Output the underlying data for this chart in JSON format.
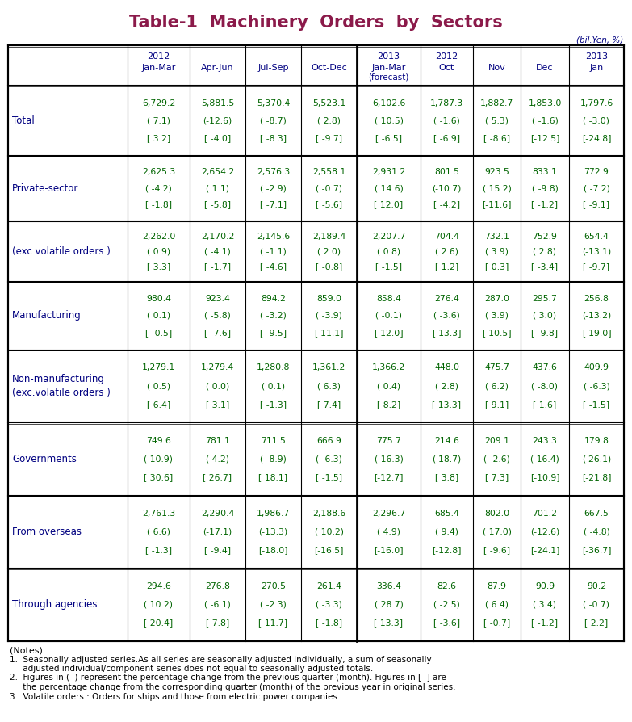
{
  "title": "Table-1  Machinery  Orders  by  Sectors",
  "title_color": "#8B1A4A",
  "unit_text": "(bil.Yen, %)",
  "col_header_color": "#000080",
  "data_color": "#006400",
  "label_color": "#000080",
  "header_lines": [
    [
      "",
      "2012",
      "",
      "",
      "",
      "2013",
      "2012",
      "",
      "",
      "2013"
    ],
    [
      "",
      "Jan-Mar",
      "Apr-Jun",
      "Jul-Sep",
      "Oct-Dec",
      "Jan-Mar",
      "Oct",
      "Nov",
      "Dec",
      "Jan"
    ],
    [
      "",
      "",
      "",
      "",
      "",
      "(forecast)",
      "",
      "",
      "",
      ""
    ]
  ],
  "sections": [
    {
      "label": "Total",
      "sub": false,
      "rows": [
        [
          "6,729.2",
          "5,881.5",
          "5,370.4",
          "5,523.1",
          "6,102.6",
          "1,787.3",
          "1,882.7",
          "1,853.0",
          "1,797.6"
        ],
        [
          "( 7.1)",
          "(-12.6)",
          "( -8.7)",
          "( 2.8)",
          "( 10.5)",
          "( -1.6)",
          "( 5.3)",
          "( -1.6)",
          "( -3.0)"
        ],
        [
          "[ 3.2]",
          "[ -4.0]",
          "[ -8.3]",
          "[ -9.7]",
          "[ -6.5]",
          "[ -6.9]",
          "[ -8.6]",
          "[-12.5]",
          "[-24.8]"
        ]
      ],
      "group_with_next": false
    },
    {
      "label": "Private-sector",
      "sub": false,
      "rows": [
        [
          "2,625.3",
          "2,654.2",
          "2,576.3",
          "2,558.1",
          "2,931.2",
          "801.5",
          "923.5",
          "833.1",
          "772.9"
        ],
        [
          "( -4.2)",
          "( 1.1)",
          "( -2.9)",
          "( -0.7)",
          "( 14.6)",
          "(-10.7)",
          "( 15.2)",
          "( -9.8)",
          "( -7.2)"
        ],
        [
          "[ -1.8]",
          "[ -5.8]",
          "[ -7.1]",
          "[ -5.6]",
          "[ 12.0]",
          "[ -4.2]",
          "[-11.6]",
          "[ -1.2]",
          "[ -9.1]"
        ]
      ],
      "group_with_next": true
    },
    {
      "label": "(exc.volatile orders )",
      "sub": true,
      "rows": [
        [
          "2,262.0",
          "2,170.2",
          "2,145.6",
          "2,189.4",
          "2,207.7",
          "704.4",
          "732.1",
          "752.9",
          "654.4"
        ],
        [
          "( 0.9)",
          "( -4.1)",
          "( -1.1)",
          "( 2.0)",
          "( 0.8)",
          "( 2.6)",
          "( 3.9)",
          "( 2.8)",
          "(-13.1)"
        ],
        [
          "[ 3.3]",
          "[ -1.7]",
          "[ -4.6]",
          "[ -0.8]",
          "[ -1.5]",
          "[ 1.2]",
          "[ 0.3]",
          "[ -3.4]",
          "[ -9.7]"
        ]
      ],
      "group_with_next": false
    },
    {
      "label": "Manufacturing",
      "sub": false,
      "rows": [
        [
          "980.4",
          "923.4",
          "894.2",
          "859.0",
          "858.4",
          "276.4",
          "287.0",
          "295.7",
          "256.8"
        ],
        [
          "( 0.1)",
          "( -5.8)",
          "( -3.2)",
          "( -3.9)",
          "( -0.1)",
          "( -3.6)",
          "( 3.9)",
          "( 3.0)",
          "(-13.2)"
        ],
        [
          "[ -0.5]",
          "[ -7.6]",
          "[ -9.5]",
          "[-11.1]",
          "[-12.0]",
          "[-13.3]",
          "[-10.5]",
          "[ -9.8]",
          "[-19.0]"
        ]
      ],
      "group_with_next": true
    },
    {
      "label": "Non-manufacturing\n(exc.volatile orders )",
      "sub": true,
      "rows": [
        [
          "1,279.1",
          "1,279.4",
          "1,280.8",
          "1,361.2",
          "1,366.2",
          "448.0",
          "475.7",
          "437.6",
          "409.9"
        ],
        [
          "( 0.5)",
          "( 0.0)",
          "( 0.1)",
          "( 6.3)",
          "( 0.4)",
          "( 2.8)",
          "( 6.2)",
          "( -8.0)",
          "( -6.3)"
        ],
        [
          "[ 6.4]",
          "[ 3.1]",
          "[ -1.3]",
          "[ 7.4]",
          "[ 8.2]",
          "[ 13.3]",
          "[ 9.1]",
          "[ 1.6]",
          "[ -1.5]"
        ]
      ],
      "group_with_next": false
    },
    {
      "label": "Governments",
      "sub": false,
      "rows": [
        [
          "749.6",
          "781.1",
          "711.5",
          "666.9",
          "775.7",
          "214.6",
          "209.1",
          "243.3",
          "179.8"
        ],
        [
          "( 10.9)",
          "( 4.2)",
          "( -8.9)",
          "( -6.3)",
          "( 16.3)",
          "(-18.7)",
          "( -2.6)",
          "( 16.4)",
          "(-26.1)"
        ],
        [
          "[ 30.6]",
          "[ 26.7]",
          "[ 18.1]",
          "[ -1.5]",
          "[-12.7]",
          "[ 3.8]",
          "[ 7.3]",
          "[-10.9]",
          "[-21.8]"
        ]
      ],
      "group_with_next": false
    },
    {
      "label": "From overseas",
      "sub": false,
      "rows": [
        [
          "2,761.3",
          "2,290.4",
          "1,986.7",
          "2,188.6",
          "2,296.7",
          "685.4",
          "802.0",
          "701.2",
          "667.5"
        ],
        [
          "( 6.6)",
          "(-17.1)",
          "(-13.3)",
          "( 10.2)",
          "( 4.9)",
          "( 9.4)",
          "( 17.0)",
          "(-12.6)",
          "( -4.8)"
        ],
        [
          "[ -1.3]",
          "[ -9.4]",
          "[-18.0]",
          "[-16.5]",
          "[-16.0]",
          "[-12.8]",
          "[ -9.6]",
          "[-24.1]",
          "[-36.7]"
        ]
      ],
      "group_with_next": false
    },
    {
      "label": "Through agencies",
      "sub": false,
      "rows": [
        [
          "294.6",
          "276.8",
          "270.5",
          "261.4",
          "336.4",
          "82.6",
          "87.9",
          "90.9",
          "90.2"
        ],
        [
          "( 10.2)",
          "( -6.1)",
          "( -2.3)",
          "( -3.3)",
          "( 28.7)",
          "( -2.5)",
          "( 6.4)",
          "( 3.4)",
          "( -0.7)"
        ],
        [
          "[ 20.4]",
          "[ 7.8]",
          "[ 11.7]",
          "[ -1.8]",
          "[ 13.3]",
          "[ -3.6]",
          "[ -0.7]",
          "[ -1.2]",
          "[ 2.2]"
        ]
      ],
      "group_with_next": false
    }
  ],
  "notes": [
    "(Notes)",
    "1.  Seasonally adjusted series.As all series are seasonally adjusted individually, a sum of seasonally",
    "     adjusted individual/component series does not equal to seasonally adjusted totals.",
    "2.  Figures in (  ) represent the percentage change from the previous quarter (month). Figures in [  ] are",
    "     the percentage change from the corresponding quarter (month) of the previous year in original series.",
    "3.  Volatile orders : Orders for ships and those from electric power companies."
  ]
}
